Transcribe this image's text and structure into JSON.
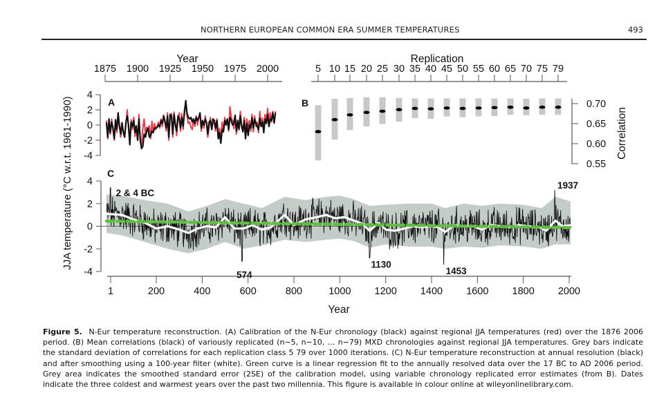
{
  "running_head": {
    "title": "NORTHERN EUROPEAN COMMON ERA SUMMER TEMPERATURES",
    "page_number": "493"
  },
  "caption": {
    "label": "Figure 5.",
    "text": "N-Eur temperature reconstruction. (A) Calibration of the N-Eur chronology (black) against regional JJA temperatures (red) over the 1876 2006 period. (B) Mean correlations (black) of variously replicated (n−5, n−10, ... n−79) MXD chronologies against regional JJA temperatures. Grey bars indicate the standard deviation of correlations for each replication class 5 79 over 1000 iterations. (C) N-Eur temperature reconstruction at annual resolution (black) and after smoothing using a 100-year filter (white). Green curve is a linear regression fit to the annually resolved data over the 17 BC to AD 2006 period. Grey area indicates the smoothed standard error (2SE) of the calibration model, using variable chronology replicated error estimates (from B). Dates indicate the three coldest and warmest years over the past two millennia. This figure is available in colour online at wileyonlinelibrary.com."
  },
  "shared_ylabel": "JJA temperature (°C w.r.t. 1961-1990)",
  "colors": {
    "instrumental": "#ee3b4b",
    "reconstruction": "#111111",
    "smoothed": "#ffffff",
    "trend": "#5fbf3f",
    "error_band": "#c4ccc8",
    "sd_bar": "#c8c8c8",
    "axis": "#555555"
  },
  "chart_data": [
    {
      "panel": "A",
      "type": "line",
      "title": "",
      "xlabel": "Year",
      "xlabel_position": "top",
      "ylabel": "JJA temperature (°C w.r.t. 1961-1990)",
      "xlim": [
        1875,
        2007
      ],
      "ylim": [
        -4,
        4
      ],
      "x_ticks": [
        1875,
        1900,
        1925,
        1950,
        1975,
        2000
      ],
      "y_ticks": [
        -4,
        -2,
        0,
        2,
        4
      ],
      "grid": false,
      "series": [
        {
          "name": "Regional JJA temperature (instrumental)",
          "color": "red",
          "x_start": 1876,
          "values": [
            0.6,
            -1.8,
            0.4,
            -1.2,
            0.8,
            -0.5,
            -2.0,
            0.3,
            -1.0,
            0.9,
            -0.2,
            -1.6,
            0.2,
            -0.8,
            -1.3,
            0.1,
            2.0,
            -0.4,
            -2.4,
            0.7,
            -0.6,
            1.0,
            -1.5,
            -0.3,
            -2.0,
            1.4,
            -1.8,
            -2.6,
            -0.4,
            0.8,
            -1.2,
            -0.3,
            -0.6,
            -0.1,
            -1.8,
            0.5,
            -1.0,
            0.2,
            -0.6,
            -0.2,
            0.4,
            -0.4,
            0.8,
            -0.2,
            1.3,
            0.6,
            -0.8,
            1.6,
            -2.0,
            1.0,
            1.5,
            -1.6,
            1.7,
            0.3,
            -1.4,
            0.8,
            1.6,
            -0.8,
            1.5,
            -0.6,
            2.0,
            3.0,
            1.2,
            0.2,
            0.4,
            -0.3,
            -0.6,
            0.8,
            -0.2,
            1.2,
            0.0,
            0.9,
            1.6,
            -0.8,
            0.4,
            -0.4,
            1.2,
            0.1,
            -1.6,
            -0.2,
            1.0,
            -0.6,
            0.4,
            0.2,
            -0.8,
            0.8,
            -1.8,
            -0.4,
            -2.0,
            0.4,
            -0.7,
            1.0,
            0.1,
            0.6,
            -0.8,
            2.4,
            1.0,
            0.6,
            -0.5,
            0.9,
            -1.2,
            0.4,
            -0.3,
            1.8,
            0.0,
            -0.7,
            1.0,
            -1.4,
            0.8,
            -0.2,
            0.6,
            -0.8,
            1.4,
            -0.9,
            1.2,
            -0.2,
            0.4,
            -1.0,
            1.8,
            0.0,
            0.9,
            -0.4,
            1.4,
            0.6,
            2.2,
            0.4,
            1.6,
            0.4,
            1.8,
            0.2,
            1.8
          ],
          "note": "approximate visual trace"
        },
        {
          "name": "N-Eur chronology",
          "color": "black",
          "x_start": 1876,
          "values": [
            0.3,
            -1.6,
            0.8,
            -1.0,
            0.4,
            -0.4,
            -1.8,
            0.7,
            -0.6,
            1.6,
            -0.1,
            -1.2,
            0.3,
            -1.0,
            -1.6,
            0.4,
            1.2,
            0.0,
            -2.6,
            0.4,
            -0.2,
            0.6,
            -1.0,
            -0.1,
            -2.0,
            0.8,
            -2.0,
            -3.1,
            -2.8,
            -1.2,
            -1.6,
            -0.8,
            -0.4,
            -1.6,
            -1.4,
            -0.8,
            -1.0,
            -0.4,
            -0.4,
            -0.3,
            0.0,
            -0.2,
            0.6,
            0.2,
            1.2,
            0.4,
            -0.4,
            1.2,
            -1.6,
            1.4,
            1.2,
            -1.2,
            1.4,
            0.0,
            -0.8,
            1.2,
            0.8,
            -0.4,
            1.0,
            -0.2,
            1.6,
            3.2,
            1.6,
            1.0,
            0.8,
            1.0,
            0.4,
            0.8,
            0.2,
            1.0,
            0.6,
            1.0,
            1.6,
            -0.4,
            0.6,
            0.0,
            0.8,
            0.4,
            -1.2,
            0.4,
            0.6,
            -0.6,
            0.8,
            0.6,
            -0.4,
            0.6,
            -1.8,
            -1.0,
            -2.4,
            -0.6,
            -0.9,
            0.6,
            0.0,
            0.8,
            -0.6,
            1.0,
            0.6,
            0.0,
            0.2,
            1.3,
            -0.8,
            0.6,
            -0.6,
            1.2,
            -0.2,
            -0.9,
            0.6,
            -1.8,
            0.2,
            -1.4,
            0.0,
            -0.4,
            1.0,
            -0.4,
            0.8,
            0.2,
            -0.2,
            -0.6,
            0.9,
            -0.2,
            0.4,
            -1.0,
            0.8,
            0.2,
            1.4,
            -0.2,
            0.8,
            0.6,
            1.6,
            0.3,
            1.6
          ],
          "note": "approximate visual trace"
        }
      ]
    },
    {
      "panel": "B",
      "type": "scatter",
      "title": "",
      "xlabel": "Replication",
      "xlabel_position": "top",
      "ylabel": "Correlation",
      "ylabel_position": "right",
      "ylim": [
        0.55,
        0.72
      ],
      "y_ticks": [
        0.55,
        0.6,
        0.65,
        0.7
      ],
      "grid": false,
      "categories": [
        "5",
        "10",
        "15",
        "20",
        "25",
        "30",
        "35",
        "40",
        "45",
        "50",
        "55",
        "60",
        "65",
        "70",
        "75",
        "79"
      ],
      "series": [
        {
          "name": "Mean correlation",
          "color": "black",
          "values": [
            0.63,
            0.66,
            0.672,
            0.678,
            0.681,
            0.685,
            0.688,
            0.687,
            0.689,
            0.688,
            0.689,
            0.69,
            0.691,
            0.689,
            0.691,
            0.691
          ]
        },
        {
          "name": "SD lower",
          "color": "grey",
          "values": [
            0.558,
            0.61,
            0.634,
            0.643,
            0.649,
            0.655,
            0.664,
            0.662,
            0.668,
            0.666,
            0.668,
            0.669,
            0.672,
            0.671,
            0.672,
            0.672
          ]
        },
        {
          "name": "SD upper",
          "color": "grey",
          "values": [
            0.696,
            0.712,
            0.714,
            0.716,
            0.716,
            0.714,
            0.713,
            0.713,
            0.713,
            0.713,
            0.713,
            0.713,
            0.713,
            0.712,
            0.713,
            0.713
          ]
        }
      ]
    },
    {
      "panel": "C",
      "type": "line",
      "title": "",
      "xlabel": "Year",
      "ylabel": "JJA temperature (°C w.r.t. 1961-1990)",
      "xlim": [
        -17,
        2006
      ],
      "ylim": [
        -4,
        4
      ],
      "x_ticks": [
        1,
        200,
        400,
        600,
        800,
        1000,
        1200,
        1400,
        1600,
        1800,
        2000
      ],
      "x_tick_labels": [
        "1",
        "200",
        "400",
        "600",
        "800",
        "1000",
        "1200",
        "1400",
        "1600",
        "1800",
        "2000"
      ],
      "y_ticks": [
        -4,
        -2,
        0,
        2,
        4
      ],
      "grid": false,
      "series": [
        {
          "name": "Smoothed 100-year filter",
          "color": "white",
          "x": [
            -17,
            50,
            100,
            150,
            200,
            250,
            300,
            340,
            380,
            420,
            460,
            500,
            540,
            580,
            620,
            660,
            700,
            760,
            800,
            850,
            900,
            940,
            980,
            1020,
            1060,
            1100,
            1130,
            1170,
            1200,
            1240,
            1280,
            1320,
            1360,
            1400,
            1430,
            1460,
            1500,
            1540,
            1580,
            1620,
            1660,
            1700,
            1740,
            1780,
            1820,
            1870,
            1900,
            1940,
            1970,
            2006
          ],
          "values": [
            1.1,
            1.0,
            0.6,
            0.3,
            -0.2,
            0.0,
            -0.3,
            -0.6,
            -0.2,
            0.0,
            -0.1,
            0.8,
            -0.2,
            -0.2,
            0.1,
            -0.3,
            -0.1,
            1.0,
            0.1,
            0.6,
            0.8,
            1.0,
            0.7,
            0.8,
            0.5,
            0.2,
            -0.4,
            0.3,
            -0.3,
            -0.4,
            -0.2,
            0.0,
            -0.1,
            0.0,
            -0.1,
            -0.5,
            0.1,
            0.0,
            0.0,
            -0.3,
            0.1,
            0.0,
            -0.1,
            0.1,
            0.0,
            -0.1,
            -0.4,
            0.5,
            0.0,
            0.1
          ]
        },
        {
          "name": "Linear regression fit",
          "color": "green",
          "style": "dashed",
          "x": [
            -17,
            2006
          ],
          "values": [
            0.45,
            -0.12
          ]
        },
        {
          "name": "2SE error band",
          "color": "grey",
          "type": "area",
          "x": [
            -17,
            50,
            150,
            250,
            340,
            420,
            500,
            580,
            660,
            760,
            850,
            940,
            1000,
            1060,
            1130,
            1200,
            1300,
            1400,
            1460,
            1540,
            1620,
            1700,
            1800,
            1880,
            1940,
            2006
          ],
          "upper": [
            2.8,
            2.7,
            2.3,
            2.0,
            1.3,
            1.8,
            2.4,
            2.0,
            1.6,
            2.6,
            2.3,
            2.6,
            2.7,
            2.4,
            1.8,
            1.9,
            2.0,
            2.0,
            1.6,
            2.0,
            1.8,
            2.0,
            1.9,
            1.6,
            2.6,
            2.2
          ],
          "lower": [
            -0.6,
            -0.8,
            -1.4,
            -2.0,
            -2.4,
            -2.0,
            -1.4,
            -2.0,
            -1.7,
            -1.2,
            -1.4,
            -1.2,
            -1.1,
            -1.3,
            -1.9,
            -1.6,
            -1.8,
            -1.8,
            -2.0,
            -1.8,
            -1.9,
            -1.7,
            -1.8,
            -2.0,
            -1.6,
            -1.6
          ]
        }
      ],
      "annotations": [
        {
          "label": "2 & 4 BC",
          "x": 0,
          "y": 3.4,
          "kind": "warmest"
        },
        {
          "label": "574",
          "x": 574,
          "y": -3.1,
          "kind": "coldest"
        },
        {
          "label": "1130",
          "x": 1130,
          "y": -2.8,
          "kind": "coldest"
        },
        {
          "label": "1453",
          "x": 1453,
          "y": -3.4,
          "kind": "coldest"
        },
        {
          "label": "1937",
          "x": 1937,
          "y": 3.2,
          "kind": "warmest"
        }
      ]
    }
  ],
  "panel_labels": [
    "A",
    "B",
    "C"
  ]
}
